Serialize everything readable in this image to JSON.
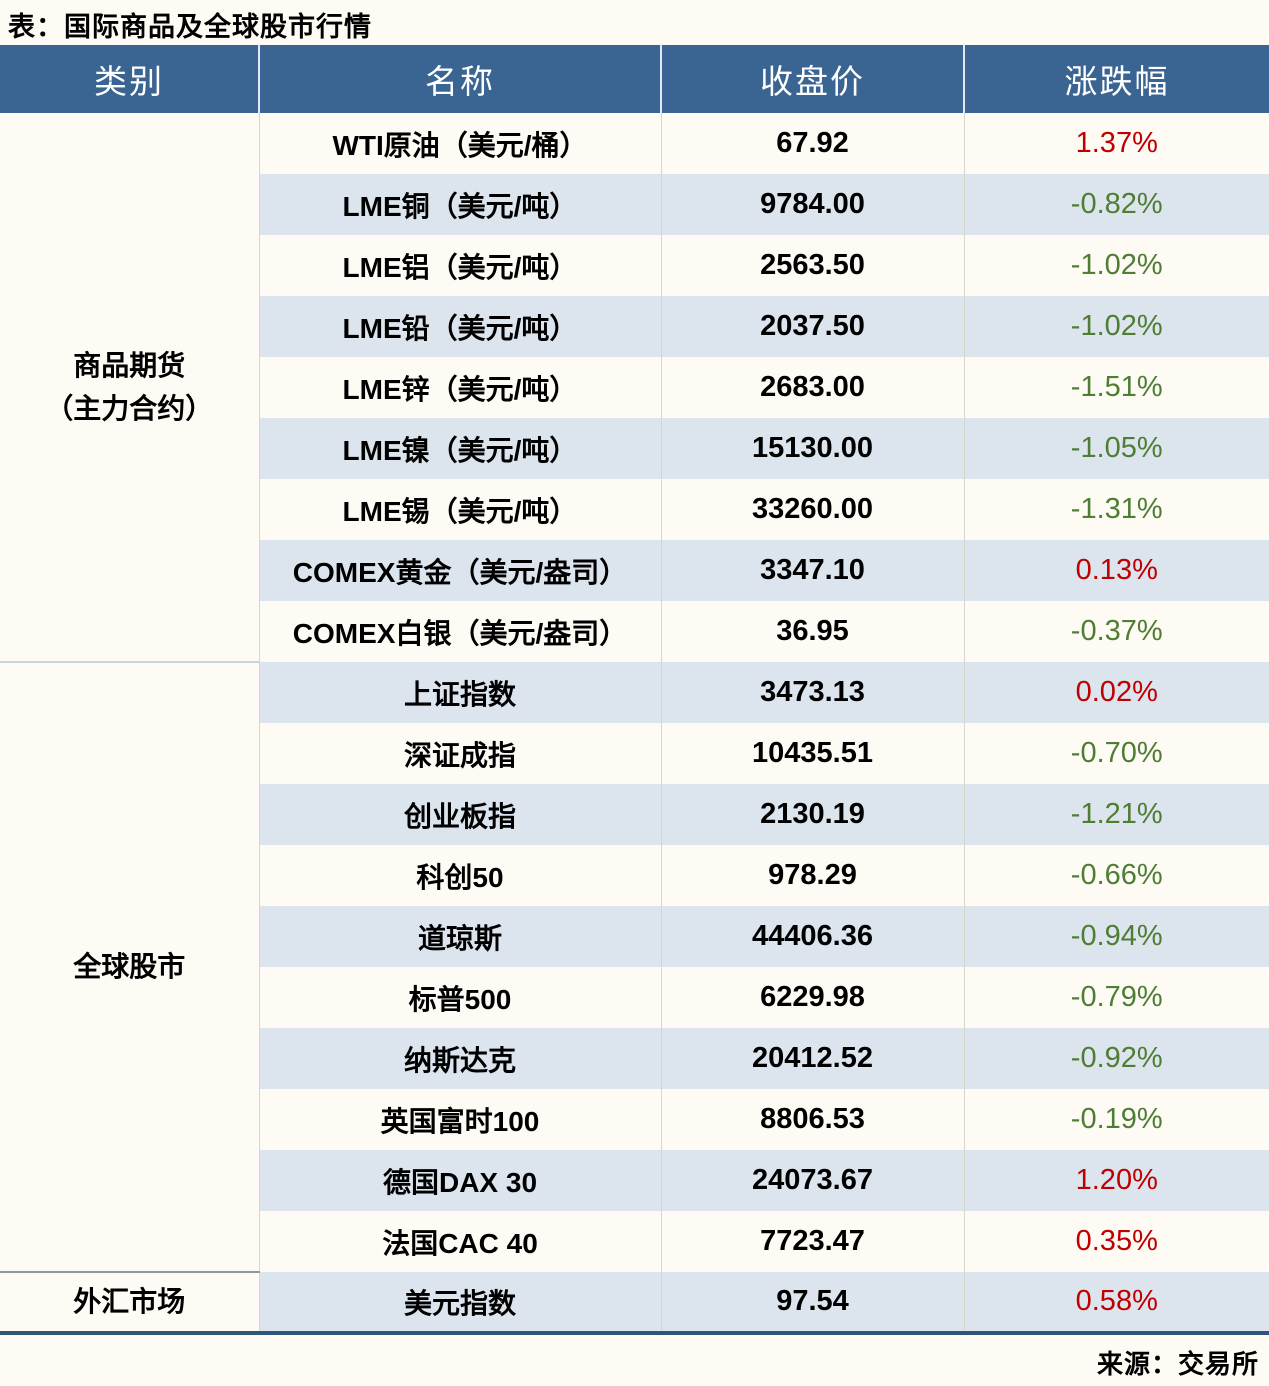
{
  "title": "表：国际商品及全球股市行情",
  "source": "来源：交易所",
  "colors": {
    "header_bg": "#3A6492",
    "row_alt": "#DCE4EE",
    "row_base": "#FDFBF4",
    "up": "#C00000",
    "down": "#4E7D33",
    "bottom_border": "#2F5578"
  },
  "columns": {
    "category": "类别",
    "name": "名称",
    "close": "收盘价",
    "pct": "涨跌幅"
  },
  "categories": [
    {
      "line1": "商品期货",
      "line2": "（主力合约）",
      "rowspan": 9
    },
    {
      "line1": "全球股市",
      "line2": "",
      "rowspan": 10
    },
    {
      "line1": "外汇市场",
      "line2": "",
      "rowspan": 1
    }
  ],
  "rows": [
    {
      "name": "WTI原油（美元/桶）",
      "close": "67.92",
      "pct": "1.37%",
      "dir": "up"
    },
    {
      "name": "LME铜（美元/吨）",
      "close": "9784.00",
      "pct": "-0.82%",
      "dir": "down"
    },
    {
      "name": "LME铝（美元/吨）",
      "close": "2563.50",
      "pct": "-1.02%",
      "dir": "down"
    },
    {
      "name": "LME铅（美元/吨）",
      "close": "2037.50",
      "pct": "-1.02%",
      "dir": "down"
    },
    {
      "name": "LME锌（美元/吨）",
      "close": "2683.00",
      "pct": "-1.51%",
      "dir": "down"
    },
    {
      "name": "LME镍（美元/吨）",
      "close": "15130.00",
      "pct": "-1.05%",
      "dir": "down"
    },
    {
      "name": "LME锡（美元/吨）",
      "close": "33260.00",
      "pct": "-1.31%",
      "dir": "down"
    },
    {
      "name": "COMEX黄金（美元/盎司）",
      "close": "3347.10",
      "pct": "0.13%",
      "dir": "up"
    },
    {
      "name": "COMEX白银（美元/盎司）",
      "close": "36.95",
      "pct": "-0.37%",
      "dir": "down"
    },
    {
      "name": "上证指数",
      "close": "3473.13",
      "pct": "0.02%",
      "dir": "up"
    },
    {
      "name": "深证成指",
      "close": "10435.51",
      "pct": "-0.70%",
      "dir": "down"
    },
    {
      "name": "创业板指",
      "close": "2130.19",
      "pct": "-1.21%",
      "dir": "down"
    },
    {
      "name": "科创50",
      "close": "978.29",
      "pct": "-0.66%",
      "dir": "down"
    },
    {
      "name": "道琼斯",
      "close": "44406.36",
      "pct": "-0.94%",
      "dir": "down"
    },
    {
      "name": "标普500",
      "close": "6229.98",
      "pct": "-0.79%",
      "dir": "down"
    },
    {
      "name": "纳斯达克",
      "close": "20412.52",
      "pct": "-0.92%",
      "dir": "down"
    },
    {
      "name": "英国富时100",
      "close": "8806.53",
      "pct": "-0.19%",
      "dir": "down"
    },
    {
      "name": "德国DAX 30",
      "close": "24073.67",
      "pct": "1.20%",
      "dir": "up"
    },
    {
      "name": "法国CAC 40",
      "close": "7723.47",
      "pct": "0.35%",
      "dir": "up"
    },
    {
      "name": "美元指数",
      "close": "97.54",
      "pct": "0.58%",
      "dir": "up"
    }
  ],
  "chart_data": {
    "type": "table",
    "title": "表：国际商品及全球股市行情",
    "columns": [
      "类别",
      "名称",
      "收盘价",
      "涨跌幅"
    ],
    "rows": [
      [
        "商品期货（主力合约）",
        "WTI原油（美元/桶）",
        67.92,
        "1.37%"
      ],
      [
        "商品期货（主力合约）",
        "LME铜（美元/吨）",
        9784.0,
        "-0.82%"
      ],
      [
        "商品期货（主力合约）",
        "LME铝（美元/吨）",
        2563.5,
        "-1.02%"
      ],
      [
        "商品期货（主力合约）",
        "LME铅（美元/吨）",
        2037.5,
        "-1.02%"
      ],
      [
        "商品期货（主力合约）",
        "LME锌（美元/吨）",
        2683.0,
        "-1.51%"
      ],
      [
        "商品期货（主力合约）",
        "LME镍（美元/吨）",
        15130.0,
        "-1.05%"
      ],
      [
        "商品期货（主力合约）",
        "LME锡（美元/吨）",
        33260.0,
        "-1.31%"
      ],
      [
        "商品期货（主力合约）",
        "COMEX黄金（美元/盎司）",
        3347.1,
        "0.13%"
      ],
      [
        "商品期货（主力合约）",
        "COMEX白银（美元/盎司）",
        36.95,
        "-0.37%"
      ],
      [
        "全球股市",
        "上证指数",
        3473.13,
        "0.02%"
      ],
      [
        "全球股市",
        "深证成指",
        10435.51,
        "-0.70%"
      ],
      [
        "全球股市",
        "创业板指",
        2130.19,
        "-1.21%"
      ],
      [
        "全球股市",
        "科创50",
        978.29,
        "-0.66%"
      ],
      [
        "全球股市",
        "道琼斯",
        44406.36,
        "-0.94%"
      ],
      [
        "全球股市",
        "标普500",
        6229.98,
        "-0.79%"
      ],
      [
        "全球股市",
        "纳斯达克",
        20412.52,
        "-0.92%"
      ],
      [
        "全球股市",
        "英国富时100",
        8806.53,
        "-0.19%"
      ],
      [
        "全球股市",
        "德国DAX 30",
        24073.67,
        "1.20%"
      ],
      [
        "全球股市",
        "法国CAC 40",
        7723.47,
        "0.35%"
      ],
      [
        "外汇市场",
        "美元指数",
        97.54,
        "0.58%"
      ]
    ],
    "notes": "红色=上涨(up), 绿色=下跌(down)",
    "source": "来源：交易所"
  }
}
